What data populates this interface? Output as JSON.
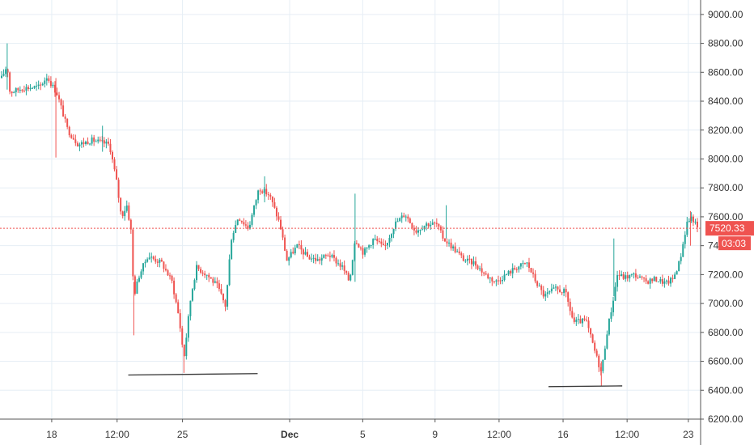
{
  "chart_data": {
    "type": "candlestick",
    "ylim": [
      6200,
      9100
    ],
    "y_ticks": [
      6200,
      6400,
      6600,
      6800,
      7000,
      7200,
      7400,
      7600,
      7800,
      8000,
      8200,
      8400,
      8600,
      8800,
      9000
    ],
    "y_tick_labels": [
      "6200.00",
      "6400.00",
      "6600.00",
      "6800.00",
      "7000.00",
      "7200.00",
      "7400.00",
      "7600.00",
      "7800.00",
      "8000.00",
      "8200.00",
      "8400.00",
      "8600.00",
      "8800.00",
      "9000.00"
    ],
    "x_ticks": [
      {
        "label": "18",
        "bold": false,
        "t": 0.072
      },
      {
        "label": "12:00",
        "bold": false,
        "t": 0.166
      },
      {
        "label": "25",
        "bold": false,
        "t": 0.26
      },
      {
        "label": "Dec",
        "bold": true,
        "t": 0.414
      },
      {
        "label": "5",
        "bold": false,
        "t": 0.519
      },
      {
        "label": "9",
        "bold": false,
        "t": 0.623
      },
      {
        "label": "12:00",
        "bold": false,
        "t": 0.715
      },
      {
        "label": "16",
        "bold": false,
        "t": 0.807
      },
      {
        "label": "12:00",
        "bold": false,
        "t": 0.899
      },
      {
        "label": "23",
        "bold": false,
        "t": 0.987
      }
    ],
    "price_path": [
      [
        0.0,
        8560
      ],
      [
        0.008,
        8650
      ],
      [
        0.012,
        8460
      ],
      [
        0.03,
        8490
      ],
      [
        0.055,
        8500
      ],
      [
        0.065,
        8570
      ],
      [
        0.08,
        8450
      ],
      [
        0.095,
        8200
      ],
      [
        0.11,
        8100
      ],
      [
        0.13,
        8130
      ],
      [
        0.155,
        8100
      ],
      [
        0.165,
        7850
      ],
      [
        0.172,
        7600
      ],
      [
        0.18,
        7680
      ],
      [
        0.186,
        7500
      ],
      [
        0.19,
        7050
      ],
      [
        0.198,
        7200
      ],
      [
        0.21,
        7330
      ],
      [
        0.23,
        7280
      ],
      [
        0.245,
        7150
      ],
      [
        0.255,
        6900
      ],
      [
        0.262,
        6620
      ],
      [
        0.272,
        7050
      ],
      [
        0.28,
        7250
      ],
      [
        0.295,
        7200
      ],
      [
        0.31,
        7120
      ],
      [
        0.322,
        6980
      ],
      [
        0.33,
        7450
      ],
      [
        0.34,
        7600
      ],
      [
        0.355,
        7520
      ],
      [
        0.37,
        7800
      ],
      [
        0.385,
        7750
      ],
      [
        0.4,
        7550
      ],
      [
        0.41,
        7300
      ],
      [
        0.425,
        7400
      ],
      [
        0.44,
        7320
      ],
      [
        0.455,
        7300
      ],
      [
        0.47,
        7340
      ],
      [
        0.49,
        7250
      ],
      [
        0.5,
        7150
      ],
      [
        0.508,
        7450
      ],
      [
        0.52,
        7350
      ],
      [
        0.535,
        7450
      ],
      [
        0.55,
        7380
      ],
      [
        0.565,
        7550
      ],
      [
        0.58,
        7620
      ],
      [
        0.595,
        7500
      ],
      [
        0.61,
        7550
      ],
      [
        0.625,
        7550
      ],
      [
        0.635,
        7450
      ],
      [
        0.65,
        7380
      ],
      [
        0.665,
        7300
      ],
      [
        0.68,
        7280
      ],
      [
        0.695,
        7200
      ],
      [
        0.71,
        7150
      ],
      [
        0.725,
        7200
      ],
      [
        0.74,
        7250
      ],
      [
        0.755,
        7280
      ],
      [
        0.768,
        7150
      ],
      [
        0.78,
        7050
      ],
      [
        0.795,
        7100
      ],
      [
        0.81,
        7080
      ],
      [
        0.822,
        6870
      ],
      [
        0.84,
        6880
      ],
      [
        0.852,
        6680
      ],
      [
        0.862,
        6520
      ],
      [
        0.87,
        6800
      ],
      [
        0.878,
        7000
      ],
      [
        0.885,
        7200
      ],
      [
        0.895,
        7180
      ],
      [
        0.91,
        7200
      ],
      [
        0.925,
        7150
      ],
      [
        0.94,
        7170
      ],
      [
        0.955,
        7140
      ],
      [
        0.965,
        7170
      ],
      [
        0.975,
        7300
      ],
      [
        0.985,
        7560
      ],
      [
        0.992,
        7600
      ],
      [
        1.0,
        7520
      ]
    ],
    "spikes": [
      {
        "t": 0.008,
        "high": 8800,
        "low": 8480
      },
      {
        "t": 0.078,
        "high": 8560,
        "low": 8010
      },
      {
        "t": 0.145,
        "high": 8230,
        "low": 8050
      },
      {
        "t": 0.19,
        "high": 7150,
        "low": 6780
      },
      {
        "t": 0.262,
        "high": 6700,
        "low": 6520
      },
      {
        "t": 0.378,
        "high": 7880,
        "low": 7700
      },
      {
        "t": 0.508,
        "high": 7760,
        "low": 7150
      },
      {
        "t": 0.639,
        "high": 7680,
        "low": 7450
      },
      {
        "t": 0.862,
        "high": 6600,
        "low": 6430
      },
      {
        "t": 0.88,
        "high": 7450,
        "low": 7050
      },
      {
        "t": 0.99,
        "high": 7640,
        "low": 7400
      }
    ],
    "last_price": 7520.33,
    "last_price_label": "7520.33",
    "countdown_label": "03:03",
    "annotations": [
      {
        "type": "support-line-1",
        "t1": 0.182,
        "t2": 0.368,
        "y1": 6505,
        "y2": 6515
      },
      {
        "type": "support-line-2",
        "t1": 0.786,
        "t2": 0.892,
        "y1": 6425,
        "y2": 6430
      }
    ],
    "colors": {
      "up": "#26a69a",
      "down": "#ef5350",
      "grid": "#e6eef5",
      "axis_text": "#333333",
      "price_line": "#ef5350",
      "annotation": "#333333"
    }
  }
}
